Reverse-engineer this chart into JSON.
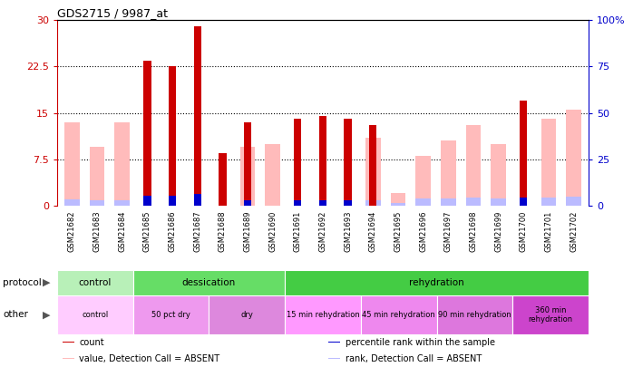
{
  "title": "GDS2715 / 9987_at",
  "samples": [
    "GSM21682",
    "GSM21683",
    "GSM21684",
    "GSM21685",
    "GSM21686",
    "GSM21687",
    "GSM21688",
    "GSM21689",
    "GSM21690",
    "GSM21691",
    "GSM21692",
    "GSM21693",
    "GSM21694",
    "GSM21695",
    "GSM21696",
    "GSM21697",
    "GSM21698",
    "GSM21699",
    "GSM21700",
    "GSM21701",
    "GSM21702"
  ],
  "count_values": [
    0,
    0,
    0,
    23.5,
    22.5,
    29,
    8.5,
    13.5,
    0,
    14,
    14.5,
    14,
    13,
    0,
    0,
    0,
    0,
    0,
    17,
    0,
    0
  ],
  "percentile_rank": [
    0,
    0,
    0,
    5.5,
    5.5,
    6.5,
    0,
    3.0,
    0,
    3.0,
    3.0,
    3.0,
    0,
    0,
    0,
    0,
    0,
    0,
    4.5,
    0,
    0
  ],
  "absent_value": [
    13.5,
    9.5,
    13.5,
    0,
    0,
    0,
    0,
    9.5,
    10,
    0,
    0,
    0,
    11,
    2,
    8,
    10.5,
    13,
    10,
    0,
    14,
    15.5
  ],
  "absent_rank": [
    3.5,
    3.0,
    3.0,
    0,
    0,
    0,
    0,
    0,
    0,
    0,
    0,
    0,
    3.0,
    1.5,
    4.0,
    4.0,
    4.5,
    4.0,
    0,
    4.5,
    5.0
  ],
  "left_yticks": [
    0,
    7.5,
    15,
    22.5,
    30
  ],
  "right_yticks": [
    0,
    25,
    50,
    75,
    100
  ],
  "ylim_left": [
    0,
    30
  ],
  "ylim_right": [
    0,
    100
  ],
  "protocol_groups": [
    {
      "label": "control",
      "start": 0,
      "end": 3,
      "color": "#b8f0b8"
    },
    {
      "label": "dessication",
      "start": 3,
      "end": 9,
      "color": "#66dd66"
    },
    {
      "label": "rehydration",
      "start": 9,
      "end": 21,
      "color": "#44cc44"
    }
  ],
  "other_groups": [
    {
      "label": "control",
      "start": 0,
      "end": 3,
      "color": "#ffccff"
    },
    {
      "label": "50 pct dry",
      "start": 3,
      "end": 6,
      "color": "#ee99ee"
    },
    {
      "label": "dry",
      "start": 6,
      "end": 9,
      "color": "#dd88dd"
    },
    {
      "label": "15 min rehydration",
      "start": 9,
      "end": 12,
      "color": "#ff99ff"
    },
    {
      "label": "45 min rehydration",
      "start": 12,
      "end": 15,
      "color": "#ee88ee"
    },
    {
      "label": "90 min rehydration",
      "start": 15,
      "end": 18,
      "color": "#dd77dd"
    },
    {
      "label": "360 min\nrehydration",
      "start": 18,
      "end": 21,
      "color": "#cc44cc"
    }
  ],
  "bar_width": 0.6,
  "narrow_bar_ratio": 0.5,
  "count_color": "#cc0000",
  "percentile_color": "#0000cc",
  "absent_value_color": "#ffbbbb",
  "absent_rank_color": "#bbbbff",
  "left_label_color": "#cc0000",
  "right_label_color": "#0000cc",
  "xtick_bg_color": "#cccccc"
}
